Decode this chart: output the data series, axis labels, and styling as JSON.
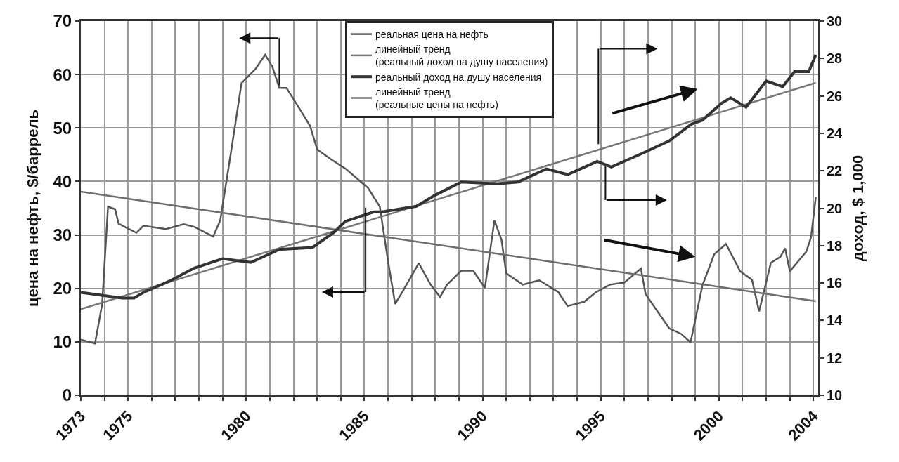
{
  "chart_data": {
    "type": "line",
    "ylabel": "цена на нефть, $/баррель",
    "y2label": "доход, $ 1,000",
    "xlim": [
      1973,
      2004.2
    ],
    "xticks": [
      1973,
      {
        "value": 1974,
        "label": null
      },
      1975,
      {
        "value": 1976,
        "label": null
      },
      {
        "value": 1977,
        "label": null
      },
      {
        "value": 1978,
        "label": null
      },
      {
        "value": 1979,
        "label": null
      },
      1980,
      {
        "value": 1981,
        "label": null
      },
      {
        "value": 1982,
        "label": null
      },
      {
        "value": 1983,
        "label": null
      },
      {
        "value": 1984,
        "label": null
      },
      1985,
      {
        "value": 1986,
        "label": null
      },
      {
        "value": 1987,
        "label": null
      },
      {
        "value": 1988,
        "label": null
      },
      {
        "value": 1989,
        "label": null
      },
      1990,
      {
        "value": 1991,
        "label": null
      },
      {
        "value": 1992,
        "label": null
      },
      {
        "value": 1993,
        "label": null
      },
      {
        "value": 1994,
        "label": null
      },
      1995,
      {
        "value": 1996,
        "label": null
      },
      {
        "value": 1997,
        "label": null
      },
      {
        "value": 1998,
        "label": null
      },
      {
        "value": 1999,
        "label": null
      },
      2000,
      {
        "value": 2001,
        "label": null
      },
      {
        "value": 2002,
        "label": null
      },
      {
        "value": 2003,
        "label": null
      },
      2004
    ],
    "ylim": [
      0,
      70
    ],
    "yticks": [
      0,
      10,
      20,
      30,
      40,
      50,
      60,
      70
    ],
    "y2lim": [
      10,
      30
    ],
    "y2ticks": [
      10,
      12,
      14,
      16,
      18,
      20,
      22,
      24,
      26,
      28,
      30
    ],
    "grid": true,
    "legend": "top",
    "line_style": "solid",
    "series": [
      {
        "name": "реальная цена на нефть",
        "color": "#555555",
        "x": [
          1973.0,
          1973.6,
          1973.9,
          1974.15,
          1974.45,
          1974.6,
          1975.35,
          1975.65,
          1976.6,
          1977.35,
          1977.8,
          1978.6,
          1978.9,
          1979.4,
          1979.8,
          1980.4,
          1980.8,
          1981.1,
          1981.4,
          1981.7,
          1982.2,
          1982.7,
          1983.0,
          1983.6,
          1984.2,
          1985.15,
          1985.65,
          1986.0,
          1986.3,
          1986.6,
          1987.3,
          1987.8,
          1988.2,
          1988.5,
          1989.1,
          1989.6,
          1990.1,
          1990.5,
          1990.8,
          1991.0,
          1991.7,
          1992.4,
          1993.2,
          1993.6,
          1994.3,
          1994.8,
          1995.4,
          1996.0,
          1996.7,
          1996.9,
          1997.9,
          1998.4,
          1998.8,
          1999.3,
          1999.8,
          2000.3,
          2000.9,
          2001.4,
          2001.7,
          2002.2,
          2002.6,
          2002.8,
          2003.0,
          2003.7,
          2003.9,
          2004.1
        ],
        "values": [
          10.4,
          9.7,
          17,
          35.3,
          34.8,
          32.1,
          30.4,
          31.7,
          31.1,
          32,
          31.5,
          29.7,
          32.7,
          46.8,
          58.4,
          61.1,
          63.7,
          61.5,
          57.5,
          57.5,
          54,
          50.4,
          46,
          44.1,
          42.4,
          38.8,
          35.3,
          25.1,
          17.1,
          19.3,
          24.7,
          20.7,
          18.4,
          20.7,
          23.3,
          23.3,
          20.1,
          32.7,
          29.1,
          22.8,
          20.7,
          21.5,
          19.3,
          16.7,
          17.5,
          19.3,
          20.7,
          21.1,
          23.7,
          18.9,
          12.5,
          11.5,
          9.9,
          20.5,
          26.4,
          28.3,
          23.2,
          21.6,
          15.7,
          24.8,
          25.9,
          27.5,
          23.2,
          26.9,
          29.6,
          37.1
        ]
      },
      {
        "name": "линейный тренд\n(реальный доход на душу населения)",
        "color": "#777777",
        "axis": "y2",
        "x": [
          1973,
          2004.1
        ],
        "values": [
          14.6,
          26.7
        ]
      },
      {
        "name": "реальный доход на душу населения",
        "color": "#333333",
        "axis": "y2",
        "x": [
          1973.0,
          1974.75,
          1975.25,
          1975.65,
          1976.75,
          1977.8,
          1979.0,
          1980.2,
          1981.4,
          1982.8,
          1983.7,
          1984.2,
          1985.4,
          1985.75,
          1987.2,
          1988.0,
          1989.1,
          1990.6,
          1991.5,
          1992.7,
          1993.6,
          1994.85,
          1995.45,
          1996.7,
          1997.9,
          1998.85,
          1999.3,
          2000.1,
          2000.5,
          2001.15,
          2002.0,
          2002.7,
          2003.2,
          2003.8,
          2004.1
        ],
        "values": [
          15.5,
          15.2,
          15.2,
          15.5,
          16.1,
          16.8,
          17.3,
          17.1,
          17.8,
          17.9,
          18.7,
          19.3,
          19.8,
          19.8,
          20.1,
          20.7,
          21.4,
          21.3,
          21.4,
          22.1,
          21.8,
          22.5,
          22.2,
          22.9,
          23.6,
          24.5,
          24.7,
          25.6,
          25.9,
          25.4,
          26.8,
          26.5,
          27.3,
          27.3,
          28.2
        ]
      },
      {
        "name": "линейный тренд\n(реальные цены на нефть)",
        "color": "#6e6e6e",
        "x": [
          1973,
          2004.1
        ],
        "values": [
          38.1,
          17.6
        ]
      }
    ]
  }
}
